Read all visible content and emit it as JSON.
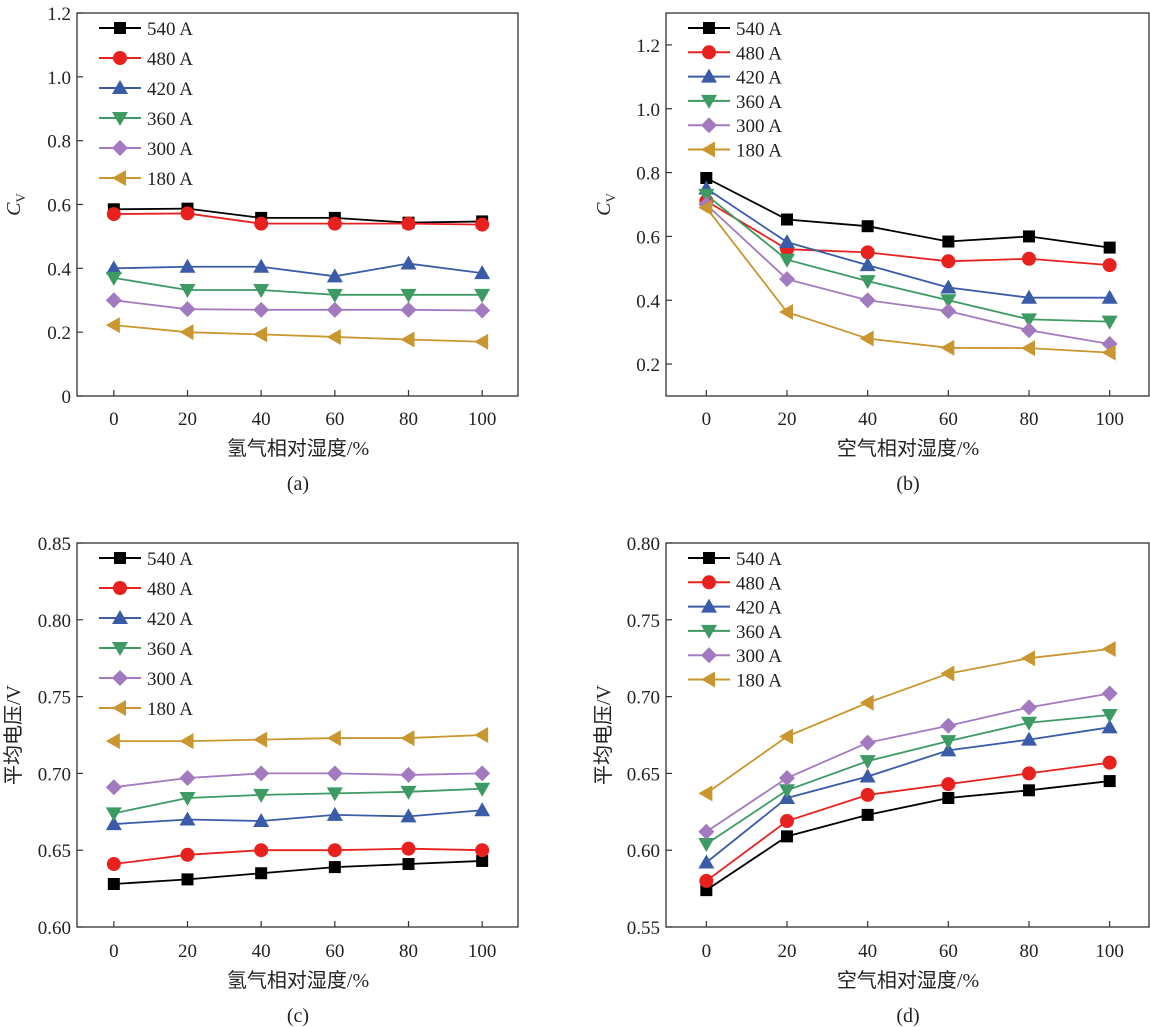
{
  "chart_data": [
    {
      "type": "line",
      "panel": "(a)",
      "caption": "(a)",
      "xlabel": "氢气相对湿度/%",
      "ylabel": "C",
      "ylabel_sub": "V",
      "x": [
        0,
        20,
        40,
        60,
        80,
        100
      ],
      "xticks": [
        "0",
        "20",
        "40",
        "60",
        "80",
        "100"
      ],
      "xlim": [
        -10,
        110
      ],
      "ylim": [
        0,
        1.2
      ],
      "yticks": [
        "0",
        "0.2",
        "0.4",
        "0.6",
        "0.8",
        "1.0",
        "1.2"
      ],
      "ytick_values": [
        0,
        0.2,
        0.4,
        0.6,
        0.8,
        1.0,
        1.2
      ],
      "legend_position": "top-left",
      "legend_spacing": "wide",
      "series": [
        {
          "name": "540 A",
          "marker": "square",
          "color": "#000000",
          "values": [
            0.585,
            0.587,
            0.558,
            0.558,
            0.543,
            0.547
          ]
        },
        {
          "name": "480 A",
          "marker": "circle",
          "color": "#e8211f",
          "values": [
            0.57,
            0.572,
            0.54,
            0.54,
            0.54,
            0.537
          ]
        },
        {
          "name": "420 A",
          "marker": "triangle-up",
          "color": "#3a5ca8",
          "values": [
            0.4,
            0.405,
            0.405,
            0.375,
            0.415,
            0.385
          ]
        },
        {
          "name": "360 A",
          "marker": "triangle-down",
          "color": "#3e9a63",
          "values": [
            0.37,
            0.332,
            0.332,
            0.317,
            0.317,
            0.317
          ]
        },
        {
          "name": "300 A",
          "marker": "diamond",
          "color": "#a37ac0",
          "values": [
            0.3,
            0.272,
            0.27,
            0.27,
            0.27,
            0.268
          ]
        },
        {
          "name": "180 A",
          "marker": "triangle-left",
          "color": "#c9962f",
          "values": [
            0.222,
            0.2,
            0.193,
            0.185,
            0.177,
            0.17
          ]
        }
      ]
    },
    {
      "type": "line",
      "panel": "(b)",
      "caption": "(b)",
      "xlabel": "空气相对湿度/%",
      "ylabel": "C",
      "ylabel_sub": "V",
      "x": [
        0,
        20,
        40,
        60,
        80,
        100
      ],
      "xticks": [
        "0",
        "20",
        "40",
        "60",
        "80",
        "100"
      ],
      "xlim": [
        -10,
        110
      ],
      "ylim": [
        0.1,
        1.3
      ],
      "yticks": [
        "0.2",
        "0.4",
        "0.6",
        "0.8",
        "1.0",
        "1.2"
      ],
      "ytick_values": [
        0.2,
        0.4,
        0.6,
        0.8,
        1.0,
        1.2
      ],
      "legend_position": "top-left",
      "legend_spacing": "tight",
      "series": [
        {
          "name": "540 A",
          "marker": "square",
          "color": "#000000",
          "values": [
            0.783,
            0.653,
            0.632,
            0.584,
            0.6,
            0.565
          ]
        },
        {
          "name": "480 A",
          "marker": "circle",
          "color": "#e8211f",
          "values": [
            0.711,
            0.56,
            0.55,
            0.522,
            0.53,
            0.51
          ]
        },
        {
          "name": "420 A",
          "marker": "triangle-up",
          "color": "#3a5ca8",
          "values": [
            0.75,
            0.582,
            0.51,
            0.44,
            0.408,
            0.408
          ]
        },
        {
          "name": "360 A",
          "marker": "triangle-down",
          "color": "#3e9a63",
          "values": [
            0.73,
            0.527,
            0.46,
            0.4,
            0.34,
            0.333
          ]
        },
        {
          "name": "300 A",
          "marker": "diamond",
          "color": "#a37ac0",
          "values": [
            0.7,
            0.466,
            0.4,
            0.366,
            0.306,
            0.263
          ]
        },
        {
          "name": "180 A",
          "marker": "triangle-left",
          "color": "#c9962f",
          "values": [
            0.69,
            0.363,
            0.28,
            0.251,
            0.25,
            0.236
          ]
        }
      ]
    },
    {
      "type": "line",
      "panel": "(c)",
      "caption": "(c)",
      "xlabel": "氢气相对湿度/%",
      "ylabel": "平均电压/V",
      "ylabel_sub": "",
      "x": [
        0,
        20,
        40,
        60,
        80,
        100
      ],
      "xticks": [
        "0",
        "20",
        "40",
        "60",
        "80",
        "100"
      ],
      "xlim": [
        -10,
        110
      ],
      "ylim": [
        0.6,
        0.85
      ],
      "yticks": [
        "0.60",
        "0.65",
        "0.70",
        "0.75",
        "0.80",
        "0.85"
      ],
      "ytick_values": [
        0.6,
        0.65,
        0.7,
        0.75,
        0.8,
        0.85
      ],
      "legend_position": "top-left",
      "legend_spacing": "wide",
      "series": [
        {
          "name": "540 A",
          "marker": "square",
          "color": "#000000",
          "values": [
            0.628,
            0.631,
            0.635,
            0.639,
            0.641,
            0.643
          ]
        },
        {
          "name": "480 A",
          "marker": "circle",
          "color": "#e8211f",
          "values": [
            0.641,
            0.647,
            0.65,
            0.65,
            0.651,
            0.65
          ]
        },
        {
          "name": "420 A",
          "marker": "triangle-up",
          "color": "#3a5ca8",
          "values": [
            0.667,
            0.67,
            0.669,
            0.673,
            0.672,
            0.676
          ]
        },
        {
          "name": "360 A",
          "marker": "triangle-down",
          "color": "#3e9a63",
          "values": [
            0.674,
            0.684,
            0.686,
            0.687,
            0.688,
            0.69
          ]
        },
        {
          "name": "300 A",
          "marker": "diamond",
          "color": "#a37ac0",
          "values": [
            0.691,
            0.697,
            0.7,
            0.7,
            0.699,
            0.7
          ]
        },
        {
          "name": "180 A",
          "marker": "triangle-left",
          "color": "#c9962f",
          "values": [
            0.721,
            0.721,
            0.722,
            0.723,
            0.723,
            0.725
          ]
        }
      ]
    },
    {
      "type": "line",
      "panel": "(d)",
      "caption": "(d)",
      "xlabel": "空气相对湿度/%",
      "ylabel": "平均电压/V",
      "ylabel_sub": "",
      "x": [
        0,
        20,
        40,
        60,
        80,
        100
      ],
      "xticks": [
        "0",
        "20",
        "40",
        "60",
        "80",
        "100"
      ],
      "xlim": [
        -10,
        110
      ],
      "ylim": [
        0.55,
        0.8
      ],
      "yticks": [
        "0.55",
        "0.60",
        "0.65",
        "0.70",
        "0.75",
        "0.80"
      ],
      "ytick_values": [
        0.55,
        0.6,
        0.65,
        0.7,
        0.75,
        0.8
      ],
      "legend_position": "top-left",
      "legend_spacing": "tight",
      "series": [
        {
          "name": "540 A",
          "marker": "square",
          "color": "#000000",
          "values": [
            0.574,
            0.609,
            0.623,
            0.634,
            0.639,
            0.645
          ]
        },
        {
          "name": "480 A",
          "marker": "circle",
          "color": "#e8211f",
          "values": [
            0.58,
            0.619,
            0.636,
            0.643,
            0.65,
            0.657
          ]
        },
        {
          "name": "420 A",
          "marker": "triangle-up",
          "color": "#3a5ca8",
          "values": [
            0.592,
            0.634,
            0.648,
            0.665,
            0.672,
            0.68
          ]
        },
        {
          "name": "360 A",
          "marker": "triangle-down",
          "color": "#3e9a63",
          "values": [
            0.604,
            0.639,
            0.658,
            0.671,
            0.683,
            0.688
          ]
        },
        {
          "name": "300 A",
          "marker": "diamond",
          "color": "#a37ac0",
          "values": [
            0.612,
            0.647,
            0.67,
            0.681,
            0.693,
            0.702
          ]
        },
        {
          "name": "180 A",
          "marker": "triangle-left",
          "color": "#c9962f",
          "values": [
            0.637,
            0.674,
            0.696,
            0.715,
            0.725,
            0.731
          ]
        }
      ]
    }
  ]
}
